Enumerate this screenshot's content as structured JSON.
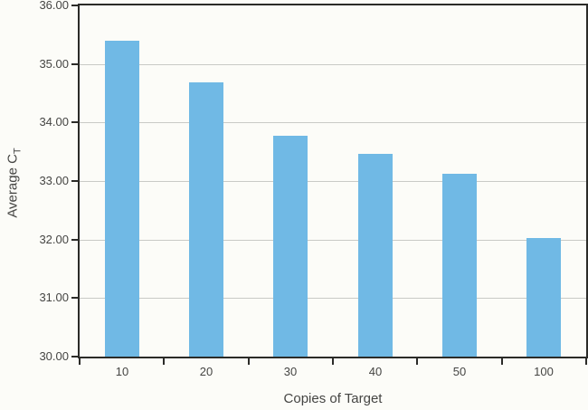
{
  "chart_data": {
    "type": "bar",
    "title": "",
    "categories": [
      "10",
      "20",
      "30",
      "40",
      "50",
      "100"
    ],
    "values": [
      35.4,
      34.68,
      33.78,
      33.46,
      33.12,
      32.03
    ],
    "xlabel": "Copies of Target",
    "ylabel": "Average C",
    "ylabel_sub": "T",
    "ylim": [
      30,
      36
    ],
    "ytick_step": 1,
    "ytick_decimals": 2,
    "grid": true,
    "legend_position": "none",
    "colors": {
      "bar": "#70b9e5",
      "axis": "#2b2b28",
      "grid": "#c9cac6",
      "text": "#454543",
      "background": "#fcfcf8"
    }
  }
}
